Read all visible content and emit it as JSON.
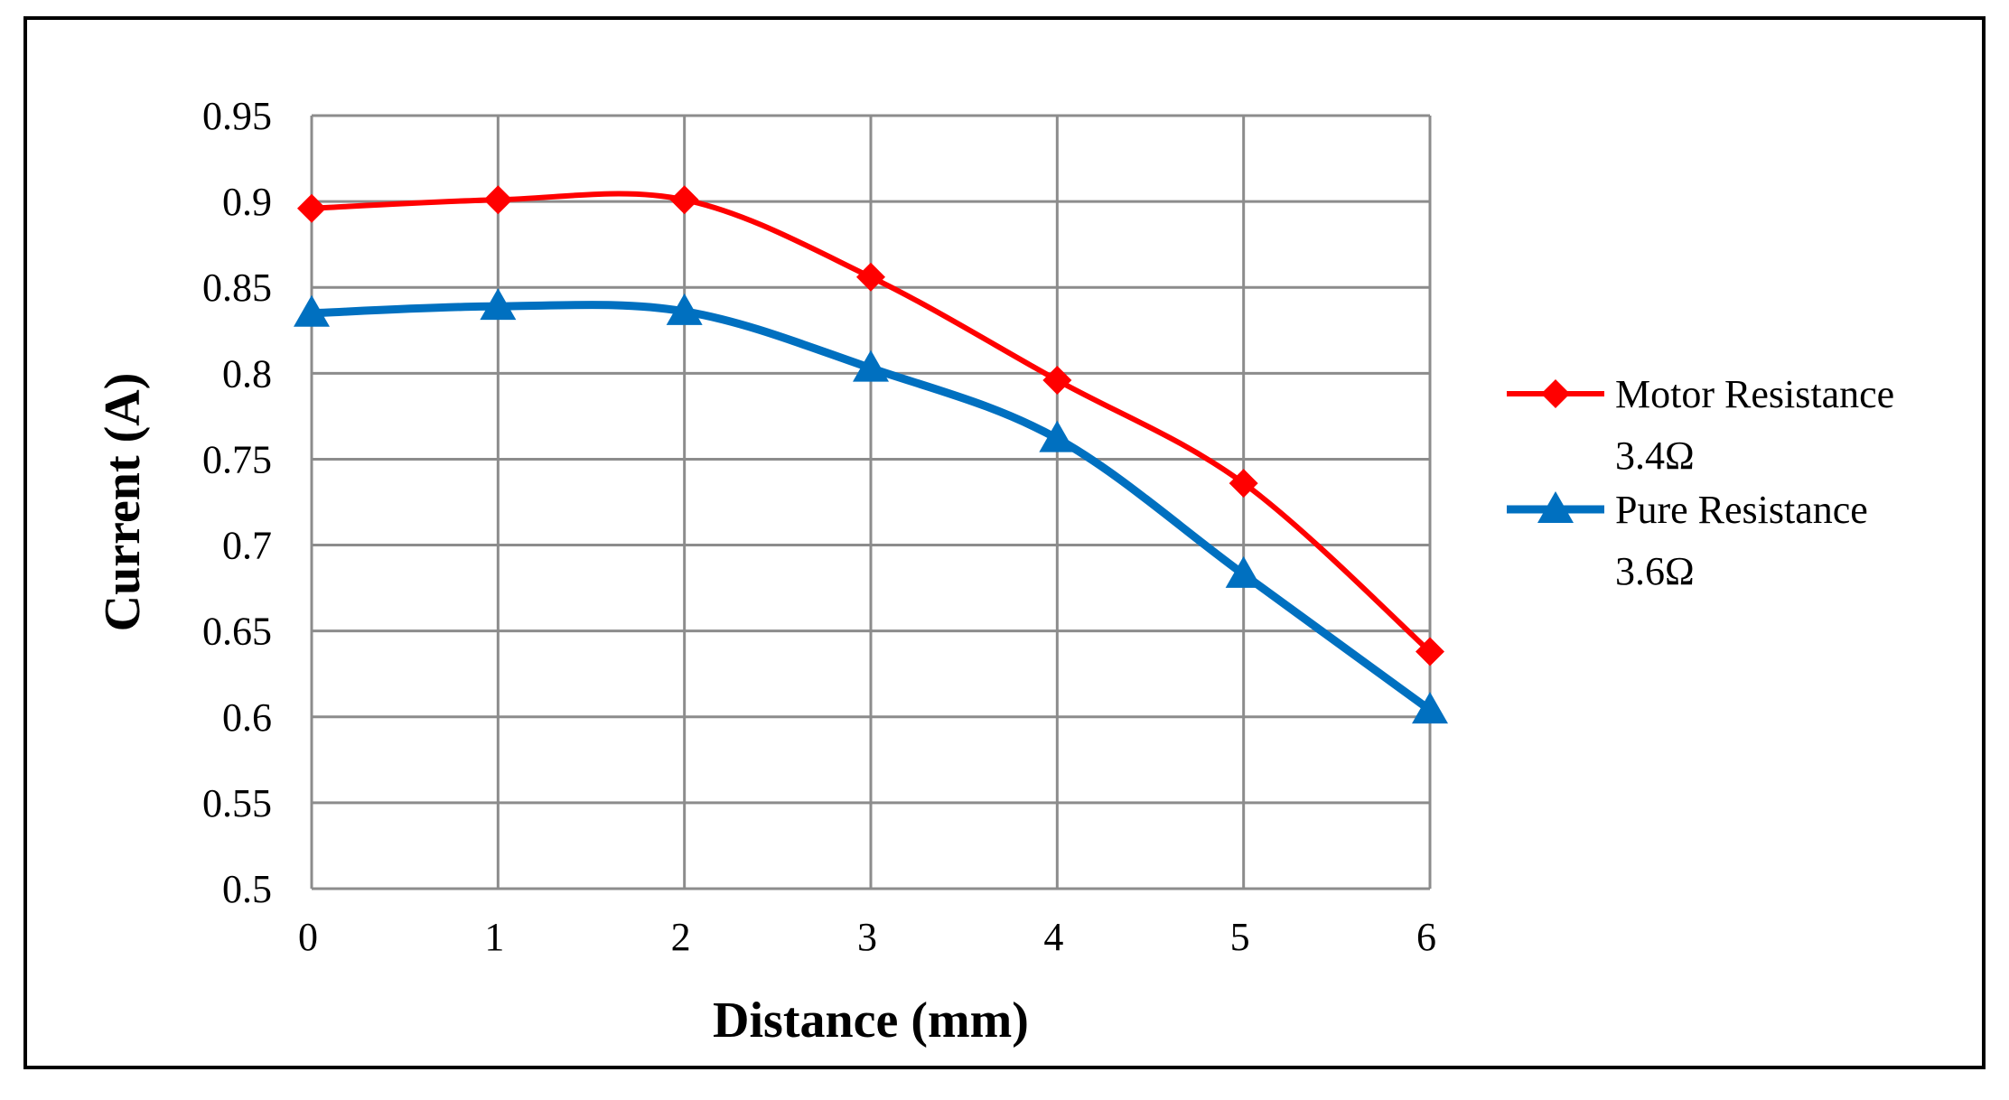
{
  "chart_data": {
    "type": "line",
    "xlabel": "Distance (mm)",
    "ylabel": "Current (A)",
    "x": [
      0,
      1,
      2,
      3,
      4,
      5,
      6
    ],
    "xlim": [
      0,
      6
    ],
    "ylim": [
      0.5,
      0.95
    ],
    "x_ticks": [
      "0",
      "1",
      "2",
      "3",
      "4",
      "5",
      "6"
    ],
    "y_ticks": [
      "0.5",
      "0.55",
      "0.6",
      "0.65",
      "0.7",
      "0.75",
      "0.8",
      "0.85",
      "0.9",
      "0.95"
    ],
    "grid": true,
    "smooth": true,
    "legend_position": "right",
    "series": [
      {
        "name": "Motor Resistance 3.4Ω",
        "legend_lines": [
          "Motor Resistance",
          "3.4Ω"
        ],
        "color": "#ff0000",
        "marker": "diamond",
        "values": [
          0.896,
          0.901,
          0.901,
          0.856,
          0.796,
          0.736,
          0.638
        ]
      },
      {
        "name": "Pure Resistance 3.6Ω",
        "legend_lines": [
          "Pure Resistance",
          "3.6Ω"
        ],
        "color": "#0070c0",
        "marker": "triangle",
        "values": [
          0.835,
          0.839,
          0.836,
          0.803,
          0.762,
          0.683,
          0.604
        ]
      }
    ]
  }
}
